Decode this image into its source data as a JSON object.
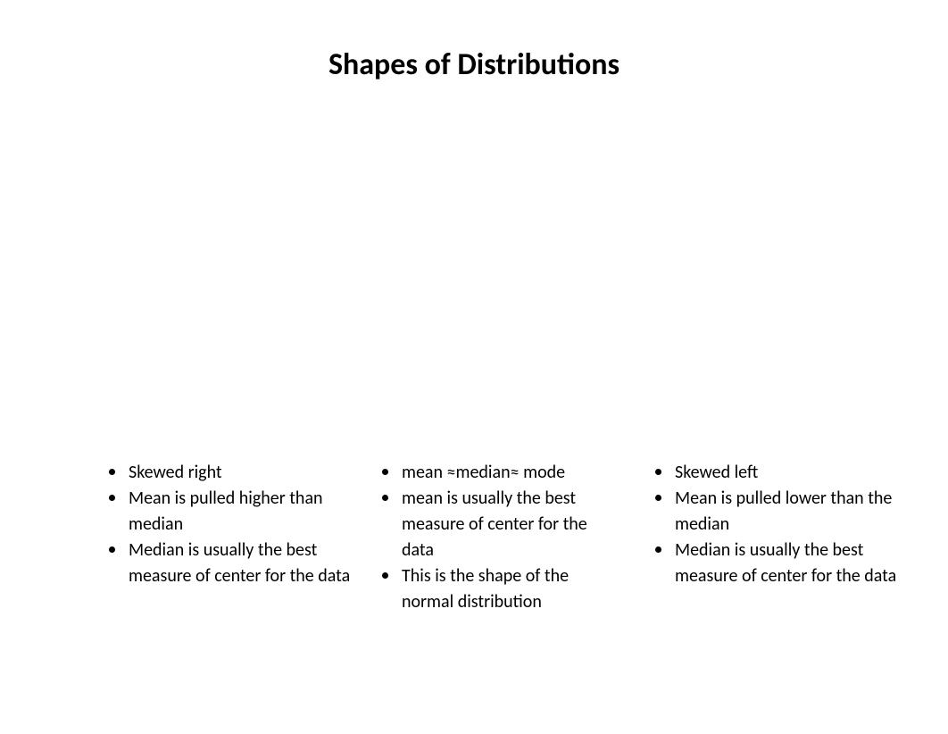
{
  "title": "Shapes of Distributions",
  "background_color": "#ffffff",
  "text_color": "#000000",
  "title_fontsize": 34,
  "body_fontsize": 20,
  "columns": {
    "left": {
      "items": [
        "Skewed right",
        "Mean is pulled higher than median",
        "Median is usually the best measure of center for the data"
      ]
    },
    "middle": {
      "items": [
        "mean ≈median≈ mode",
        "mean is usually the best measure of center for the data",
        "This is the shape of the normal distribution"
      ]
    },
    "right": {
      "items": [
        "Skewed left",
        "Mean is pulled lower than the median",
        "Median is usually the best measure of center for the data"
      ]
    }
  }
}
